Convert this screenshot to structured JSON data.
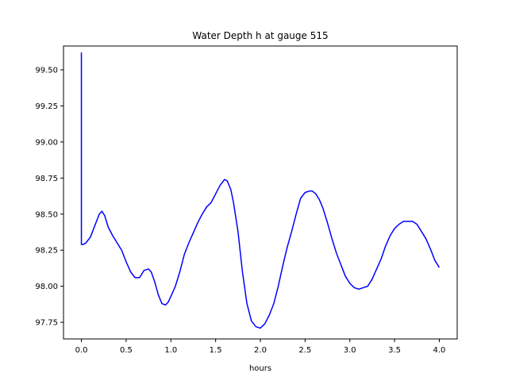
{
  "chart_data": {
    "type": "line",
    "title": "Water Depth h at gauge 515",
    "xlabel": "hours",
    "ylabel": "",
    "xlim": [
      -0.2,
      4.2
    ],
    "ylim": [
      97.635,
      99.665
    ],
    "xticks": [
      0.0,
      0.5,
      1.0,
      1.5,
      2.0,
      2.5,
      3.0,
      3.5,
      4.0
    ],
    "xtick_labels": [
      "0.0",
      "0.5",
      "1.0",
      "1.5",
      "2.0",
      "2.5",
      "3.0",
      "3.5",
      "4.0"
    ],
    "yticks": [
      97.75,
      98.0,
      98.25,
      98.5,
      98.75,
      99.0,
      99.25,
      99.5
    ],
    "ytick_labels": [
      "97.75",
      "98.00",
      "98.25",
      "98.50",
      "98.75",
      "99.00",
      "99.25",
      "99.50"
    ],
    "grid": false,
    "series": [
      {
        "color": "#0000ff",
        "x": [
          0.0,
          0.0,
          0.02,
          0.05,
          0.1,
          0.15,
          0.2,
          0.23,
          0.26,
          0.3,
          0.35,
          0.4,
          0.45,
          0.5,
          0.55,
          0.6,
          0.65,
          0.7,
          0.75,
          0.78,
          0.82,
          0.86,
          0.9,
          0.94,
          0.97,
          1.0,
          1.05,
          1.1,
          1.15,
          1.2,
          1.25,
          1.3,
          1.35,
          1.4,
          1.45,
          1.5,
          1.55,
          1.6,
          1.63,
          1.67,
          1.7,
          1.75,
          1.8,
          1.85,
          1.9,
          1.95,
          2.0,
          2.05,
          2.1,
          2.15,
          2.2,
          2.25,
          2.3,
          2.35,
          2.4,
          2.45,
          2.5,
          2.55,
          2.58,
          2.62,
          2.66,
          2.7,
          2.75,
          2.8,
          2.85,
          2.9,
          2.95,
          3.0,
          3.05,
          3.1,
          3.15,
          3.2,
          3.25,
          3.3,
          3.35,
          3.4,
          3.45,
          3.5,
          3.55,
          3.6,
          3.65,
          3.7,
          3.75,
          3.8,
          3.85,
          3.9,
          3.95,
          4.0
        ],
        "y": [
          99.62,
          98.29,
          98.29,
          98.3,
          98.34,
          98.42,
          98.5,
          98.52,
          98.49,
          98.41,
          98.35,
          98.3,
          98.25,
          98.17,
          98.1,
          98.06,
          98.06,
          98.11,
          98.12,
          98.1,
          98.03,
          97.94,
          97.88,
          97.87,
          97.89,
          97.93,
          98.0,
          98.1,
          98.22,
          98.3,
          98.37,
          98.44,
          98.5,
          98.55,
          98.58,
          98.64,
          98.7,
          98.74,
          98.73,
          98.67,
          98.58,
          98.38,
          98.1,
          97.88,
          97.76,
          97.72,
          97.71,
          97.74,
          97.8,
          97.88,
          98.0,
          98.14,
          98.27,
          98.38,
          98.5,
          98.61,
          98.65,
          98.66,
          98.66,
          98.64,
          98.6,
          98.54,
          98.44,
          98.33,
          98.23,
          98.15,
          98.07,
          98.02,
          97.99,
          97.98,
          97.99,
          98.0,
          98.05,
          98.12,
          98.19,
          98.28,
          98.35,
          98.4,
          98.43,
          98.45,
          98.45,
          98.45,
          98.43,
          98.38,
          98.33,
          98.26,
          98.18,
          98.13
        ]
      }
    ]
  }
}
